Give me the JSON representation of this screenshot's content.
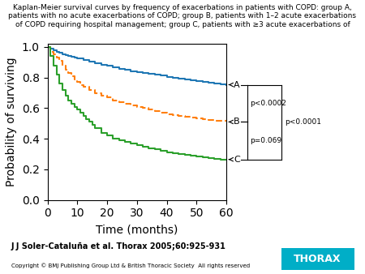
{
  "chart_data": {
    "type": "step",
    "title": "Kaplan-Meier survival curves by frequency of exacerbations in patients with COPD: group A,\npatients with no acute exacerbations of COPD; group B, patients with 1–2 acute exacerbations\nof COPD requiring hospital management; group C, patients with ≥3 acute exacerbations of",
    "x_label": "Time (months)",
    "y_label": "Probability of surviving",
    "xlim": [
      0,
      60
    ],
    "ylim": [
      0.0,
      1.02
    ],
    "xticks": [
      0,
      10,
      20,
      30,
      40,
      50,
      60
    ],
    "yticks": [
      0.0,
      0.2,
      0.4,
      0.6,
      0.8,
      1.0
    ],
    "series": [
      {
        "label": "A",
        "line_style": "solid",
        "x": [
          0,
          1,
          2,
          3,
          4,
          5,
          6,
          7,
          8,
          9,
          10,
          12,
          14,
          16,
          18,
          20,
          22,
          24,
          26,
          28,
          30,
          32,
          34,
          36,
          38,
          40,
          42,
          44,
          46,
          48,
          50,
          52,
          54,
          56,
          58,
          60
        ],
        "values": [
          1.0,
          0.99,
          0.98,
          0.97,
          0.96,
          0.95,
          0.945,
          0.94,
          0.935,
          0.93,
          0.925,
          0.915,
          0.905,
          0.895,
          0.885,
          0.875,
          0.865,
          0.857,
          0.85,
          0.843,
          0.837,
          0.83,
          0.824,
          0.818,
          0.812,
          0.806,
          0.8,
          0.794,
          0.788,
          0.783,
          0.778,
          0.773,
          0.768,
          0.763,
          0.758,
          0.753
        ]
      },
      {
        "label": "B",
        "line_style": "dashed",
        "x": [
          0,
          1,
          2,
          3,
          4,
          5,
          6,
          7,
          8,
          9,
          10,
          11,
          12,
          14,
          16,
          18,
          20,
          22,
          24,
          26,
          28,
          30,
          32,
          34,
          36,
          38,
          40,
          42,
          44,
          46,
          48,
          50,
          52,
          54,
          56,
          58,
          60
        ],
        "values": [
          1.0,
          0.97,
          0.95,
          0.93,
          0.91,
          0.88,
          0.85,
          0.83,
          0.81,
          0.79,
          0.77,
          0.75,
          0.74,
          0.72,
          0.7,
          0.68,
          0.67,
          0.65,
          0.64,
          0.63,
          0.62,
          0.61,
          0.6,
          0.59,
          0.58,
          0.57,
          0.56,
          0.555,
          0.55,
          0.545,
          0.54,
          0.535,
          0.53,
          0.525,
          0.52,
          0.515,
          0.51
        ]
      },
      {
        "label": "C",
        "line_style": "solid",
        "x": [
          0,
          1,
          2,
          3,
          4,
          5,
          6,
          7,
          8,
          9,
          10,
          11,
          12,
          13,
          14,
          15,
          16,
          18,
          20,
          22,
          24,
          26,
          28,
          30,
          32,
          34,
          36,
          38,
          40,
          42,
          44,
          46,
          48,
          50,
          52,
          54,
          56,
          58,
          60
        ],
        "values": [
          1.0,
          0.94,
          0.88,
          0.82,
          0.76,
          0.72,
          0.68,
          0.65,
          0.63,
          0.61,
          0.59,
          0.57,
          0.55,
          0.53,
          0.51,
          0.49,
          0.47,
          0.44,
          0.42,
          0.4,
          0.39,
          0.38,
          0.37,
          0.36,
          0.35,
          0.34,
          0.33,
          0.32,
          0.31,
          0.305,
          0.3,
          0.295,
          0.29,
          0.285,
          0.28,
          0.275,
          0.27,
          0.265,
          0.265
        ]
      }
    ],
    "annotations": [
      {
        "text": "p<0.0002",
        "between": [
          "A",
          "B"
        ]
      },
      {
        "text": "p=0.069",
        "between": [
          "B",
          "C"
        ]
      },
      {
        "text": "p<0.0001",
        "between": [
          "A",
          "C"
        ]
      }
    ],
    "footer": "J J Soler-Cataluña et al. Thorax 2005;60:925-931",
    "copyright": "Copyright © BMJ Publishing Group Ltd & British Thoracic Society  All rights reserved",
    "logo": {
      "text": "THORAX",
      "color": "#00aec7"
    }
  }
}
